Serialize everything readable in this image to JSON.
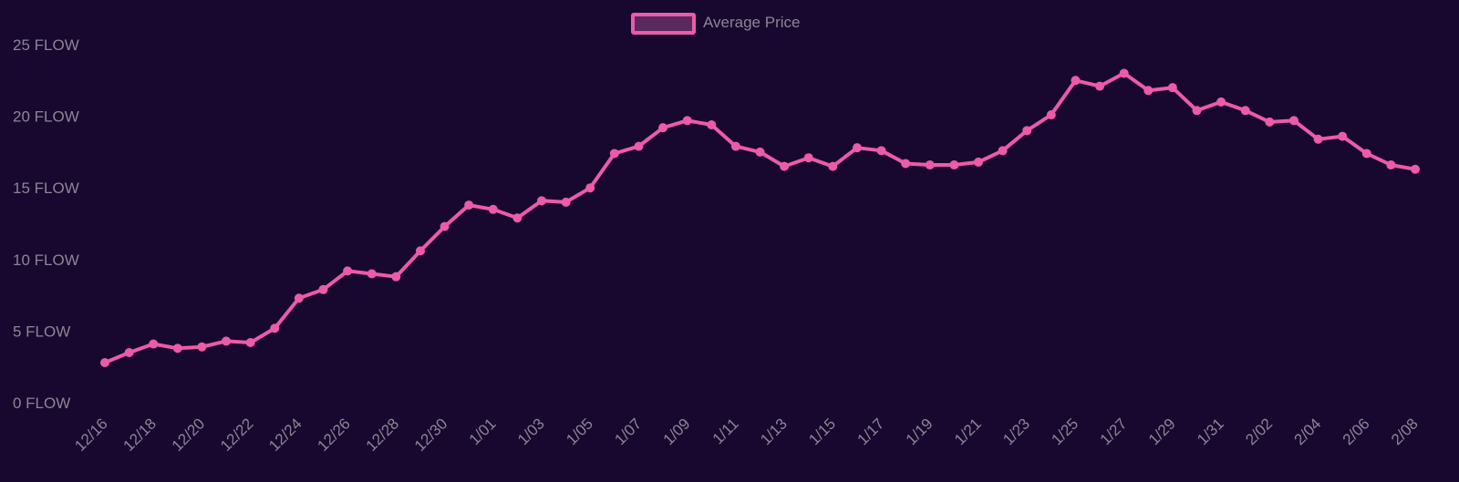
{
  "colors": {
    "background": "#180830",
    "line": "#ec5ba8",
    "legend_fill": "#5a2a5e",
    "tick_text": "#8b8594"
  },
  "chart_data": {
    "type": "line",
    "legend_placement": "top-center",
    "grid": false,
    "ylim": [
      0,
      25
    ],
    "y_ticks": [
      0,
      5,
      10,
      15,
      20,
      25
    ],
    "y_tick_suffix": " FLOW",
    "x": [
      "12/16",
      "12/17",
      "12/18",
      "12/19",
      "12/20",
      "12/21",
      "12/22",
      "12/23",
      "12/24",
      "12/25",
      "12/26",
      "12/27",
      "12/28",
      "12/29",
      "12/30",
      "12/31",
      "1/01",
      "1/02",
      "1/03",
      "1/04",
      "1/05",
      "1/06",
      "1/07",
      "1/08",
      "1/09",
      "1/10",
      "1/11",
      "1/12",
      "1/13",
      "1/14",
      "1/15",
      "1/16",
      "1/17",
      "1/18",
      "1/19",
      "1/20",
      "1/21",
      "1/22",
      "1/23",
      "1/24",
      "1/25",
      "1/26",
      "1/27",
      "1/28",
      "1/29",
      "1/30",
      "1/31",
      "2/01",
      "2/02",
      "2/03",
      "2/04",
      "2/05",
      "2/06",
      "2/07",
      "2/08"
    ],
    "x_tick_labels": [
      "12/16",
      "12/18",
      "12/20",
      "12/22",
      "12/24",
      "12/26",
      "12/28",
      "12/30",
      "1/01",
      "1/03",
      "1/05",
      "1/07",
      "1/09",
      "1/11",
      "1/13",
      "1/15",
      "1/17",
      "1/19",
      "1/21",
      "1/23",
      "1/25",
      "1/27",
      "1/29",
      "1/31",
      "2/02",
      "2/04",
      "2/06",
      "2/08"
    ],
    "series": [
      {
        "name": "Average Price",
        "values": [
          2.8,
          3.5,
          4.1,
          3.8,
          3.9,
          4.3,
          4.2,
          5.2,
          7.3,
          7.9,
          9.2,
          9.0,
          8.8,
          10.6,
          12.3,
          13.8,
          13.5,
          12.9,
          14.1,
          14.0,
          15.0,
          17.4,
          17.9,
          19.2,
          19.7,
          19.4,
          17.9,
          17.5,
          16.5,
          17.1,
          16.5,
          17.8,
          17.6,
          16.7,
          16.6,
          16.6,
          16.8,
          17.6,
          19.0,
          20.1,
          22.5,
          22.1,
          23.0,
          21.8,
          22.0,
          20.4,
          21.0,
          20.4,
          19.6,
          19.7,
          18.4,
          18.6,
          17.4,
          16.6,
          16.3
        ]
      }
    ]
  }
}
